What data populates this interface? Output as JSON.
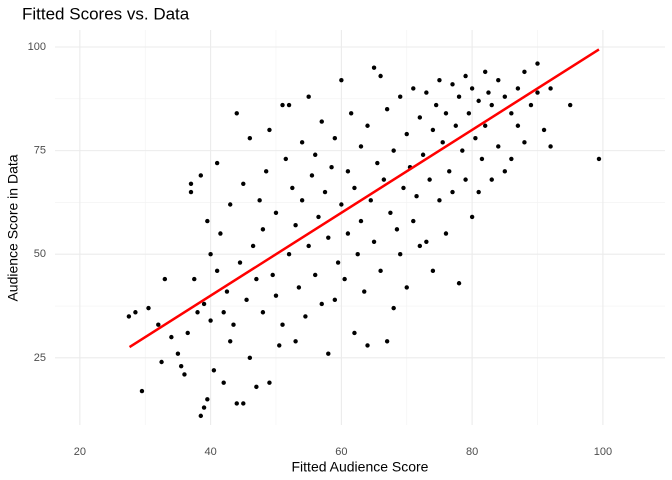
{
  "chart_data": {
    "type": "scatter",
    "title": "Fitted Scores vs. Data",
    "x_label": "Fitted Audience Score",
    "y_label": "Audience Score in Data",
    "xlim": [
      16.2,
      109.5
    ],
    "ylim": [
      8.8,
      104.1
    ],
    "xticks": [
      20,
      40,
      60,
      80,
      100
    ],
    "yticks": [
      25,
      50,
      75,
      100
    ],
    "xminor": [
      30,
      50,
      70,
      90
    ],
    "yminor": [
      37.5,
      62.5,
      87.5
    ],
    "grid": true,
    "series": [
      {
        "color": "#000000",
        "x": [
          27.5,
          28.5,
          29.5,
          30.5,
          32,
          32.5,
          33,
          34,
          35,
          35.5,
          36,
          36.5,
          37,
          37,
          37.5,
          38,
          38.5,
          38.5,
          39,
          39,
          39.5,
          39.5,
          40,
          40,
          40.5,
          41,
          41,
          41.5,
          42,
          42,
          42.5,
          43,
          43,
          43.5,
          44,
          44,
          44.5,
          45,
          45,
          45.5,
          46,
          46,
          46.5,
          47,
          47,
          47.5,
          48,
          48,
          48.5,
          49,
          49,
          49.5,
          50,
          50,
          50.5,
          51,
          51,
          51.5,
          52,
          52,
          52.5,
          53,
          53,
          53.5,
          54,
          54,
          54.5,
          55,
          55,
          55.5,
          56,
          56,
          56.5,
          57,
          57,
          57.5,
          58,
          58,
          58.5,
          59,
          59,
          59.5,
          60,
          60,
          60.5,
          61,
          61,
          61.5,
          62,
          62,
          62.5,
          63,
          63,
          63.5,
          64,
          64,
          64.5,
          65,
          65,
          65.5,
          66,
          66,
          66.5,
          67,
          67,
          67.5,
          68,
          68,
          68.5,
          69,
          69,
          69.5,
          70,
          70,
          70.5,
          71,
          71,
          71.5,
          72,
          72,
          72.5,
          73,
          73,
          73.5,
          74,
          74,
          74.5,
          75,
          75,
          75.5,
          76,
          76,
          76.5,
          77,
          77,
          77.5,
          78,
          78,
          78.5,
          79,
          79,
          79.5,
          80,
          80,
          80.5,
          81,
          81,
          81.5,
          82,
          82,
          82.5,
          83,
          83,
          84,
          84,
          85,
          85,
          86,
          86,
          87,
          87,
          88,
          88,
          89,
          90,
          90,
          91,
          92,
          92,
          95,
          99.4
        ],
        "values": [
          35,
          36,
          17,
          37,
          33,
          24,
          44,
          30,
          26,
          23,
          21,
          31,
          67,
          65,
          44,
          36,
          11,
          69,
          13,
          38,
          15,
          58,
          34,
          50,
          22,
          72,
          46,
          55,
          19,
          36,
          41,
          29,
          62,
          33,
          84,
          14,
          48,
          14,
          67,
          39,
          78,
          25,
          52,
          18,
          44,
          63,
          36,
          56,
          70,
          80,
          19,
          45,
          60,
          40,
          28,
          86,
          33,
          73,
          86,
          50,
          66,
          29,
          57,
          42,
          77,
          63,
          35,
          88,
          52,
          69,
          45,
          74,
          59,
          38,
          82,
          65,
          26,
          54,
          71,
          39,
          78,
          48,
          92,
          62,
          44,
          70,
          55,
          84,
          31,
          66,
          50,
          76,
          58,
          41,
          28,
          81,
          63,
          95,
          53,
          72,
          93,
          46,
          68,
          29,
          85,
          60,
          37,
          75,
          56,
          50,
          88,
          66,
          42,
          79,
          71,
          58,
          90,
          64,
          83,
          52,
          74,
          53,
          89,
          68,
          46,
          80,
          86,
          63,
          92,
          77,
          55,
          84,
          70,
          91,
          65,
          81,
          43,
          88,
          75,
          93,
          68,
          84,
          59,
          90,
          78,
          65,
          87,
          73,
          94,
          81,
          89,
          68,
          86,
          76,
          92,
          70,
          88,
          73,
          84,
          81,
          90,
          94,
          77,
          86,
          96,
          89,
          80,
          76,
          90,
          86,
          73
        ]
      },
      {
        "type": "line",
        "color": "#ff0000",
        "x": [
          27.6,
          99.4
        ],
        "values": [
          27.6,
          99.4
        ]
      }
    ]
  }
}
